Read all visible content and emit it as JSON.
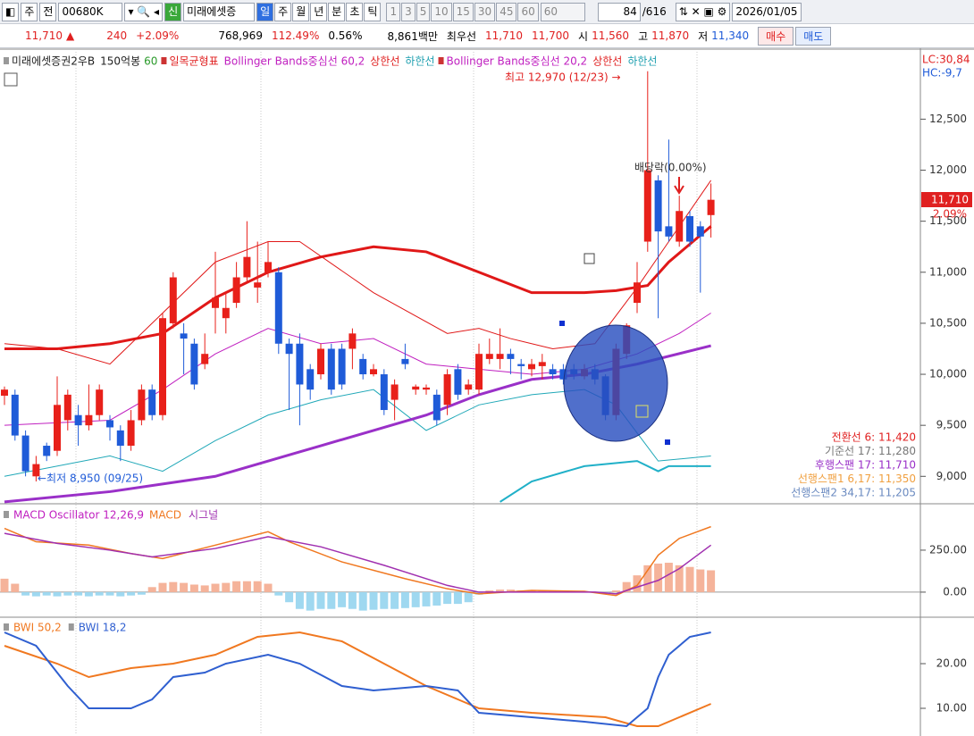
{
  "toolbar": {
    "items": [
      "주",
      "전"
    ],
    "code": "00680K",
    "flag": "신",
    "name": "미래에셋증",
    "periods": [
      "일",
      "주",
      "월",
      "년",
      "분",
      "초",
      "틱"
    ],
    "intervals": [
      "1",
      "3",
      "5",
      "10",
      "15",
      "30",
      "45",
      "60"
    ],
    "interval_value": "60",
    "count": "84",
    "total": "/616",
    "date": "2026/01/05"
  },
  "quote": {
    "price": "11,710",
    "arrow": "▲",
    "change": "240",
    "rate": "+2.09%",
    "volume": "768,969",
    "volume_ratio": "112.49%",
    "turnover": "0.56%",
    "amount": "8,861백만",
    "best_label": "최우선",
    "ask": "11,710",
    "bid": "11,700",
    "open_label": "시",
    "open": "11,560",
    "high_label": "고",
    "high": "11,870",
    "low_label": "저",
    "low": "11,340",
    "buy": "매수",
    "sell": "매도"
  },
  "legend": [
    {
      "text": "미래에셋증권2우B",
      "color": "#222222"
    },
    {
      "text": "150억봉",
      "color": "#222222"
    },
    {
      "text": "60",
      "color": "#2a9a2a"
    },
    {
      "text": "일목균형표",
      "color": "#e02020"
    },
    {
      "text": "Bollinger Bands중심선 60,2",
      "color": "#c020c0"
    },
    {
      "text": "상한선",
      "color": "#e02020"
    },
    {
      "text": "하한선",
      "color": "#20a0b0"
    },
    {
      "text": "Bollinger Bands중심선 20,2",
      "color": "#c020c0"
    },
    {
      "text": "상한선",
      "color": "#e02020"
    },
    {
      "text": "하한선",
      "color": "#20a0b0"
    }
  ],
  "chart_data": [
    {
      "type": "candlestick",
      "up_color": "#e8201a",
      "down_color": "#1f5bd8",
      "open": [
        9790,
        9800,
        9400,
        9000,
        9300,
        9250,
        9550,
        9600,
        9500,
        9600,
        9550,
        9450,
        9300,
        9550,
        9850,
        9600,
        10500,
        10400,
        10300,
        10100,
        10650,
        10550,
        10700,
        10950,
        10850,
        11000,
        11000,
        10300,
        10300,
        10050,
        10000,
        10250,
        10250,
        10250,
        10150,
        10000,
        10000,
        9750,
        10150,
        9850,
        9850,
        9800,
        9700,
        10050,
        9850,
        9850,
        10150,
        10150,
        10200,
        10100,
        10050,
        10080,
        10050,
        10050,
        10050,
        9980,
        10050,
        9980,
        9600,
        10200,
        10700,
        11300,
        11900,
        11450,
        11300,
        11550,
        11450,
        11560
      ],
      "high": [
        9880,
        9850,
        9450,
        9200,
        9330,
        9980,
        9850,
        9700,
        9900,
        9900,
        9600,
        9500,
        9650,
        9900,
        9900,
        10600,
        11000,
        10500,
        10350,
        10400,
        11200,
        10800,
        11100,
        11500,
        11300,
        11300,
        11050,
        10350,
        10400,
        10100,
        10300,
        10300,
        10300,
        10450,
        10200,
        10100,
        10050,
        9950,
        10300,
        9900,
        9900,
        9850,
        10050,
        10100,
        9950,
        10300,
        10350,
        10450,
        10250,
        10150,
        10150,
        10200,
        10100,
        10100,
        10100,
        10100,
        10100,
        10000,
        10300,
        10500,
        11100,
        12970,
        11950,
        12300,
        11750,
        11600,
        11500,
        11870
      ],
      "low": [
        9700,
        9350,
        9000,
        8950,
        9150,
        9200,
        9450,
        9300,
        9450,
        9550,
        9350,
        9150,
        9250,
        9500,
        9550,
        9550,
        10450,
        10000,
        9850,
        10050,
        10400,
        10400,
        10650,
        10900,
        10700,
        10950,
        10200,
        9650,
        9500,
        9750,
        9950,
        9800,
        9850,
        10050,
        9950,
        9980,
        9600,
        9550,
        10050,
        9800,
        9800,
        9500,
        9600,
        9750,
        9800,
        9800,
        10100,
        10050,
        10000,
        9950,
        9980,
        9950,
        9950,
        9900,
        9950,
        9950,
        9900,
        9550,
        9550,
        10150,
        10600,
        11200,
        10550,
        11300,
        11250,
        11250,
        10800,
        11340
      ],
      "close": [
        9850,
        9400,
        9050,
        9120,
        9200,
        9700,
        9800,
        9500,
        9600,
        9850,
        9480,
        9300,
        9550,
        9850,
        9600,
        10550,
        10950,
        10350,
        9900,
        10200,
        10750,
        10650,
        10950,
        11150,
        10900,
        11100,
        10300,
        10200,
        9900,
        9850,
        10250,
        9850,
        9900,
        10400,
        10000,
        10050,
        9650,
        9900,
        10100,
        9880,
        9870,
        9550,
        10000,
        9800,
        9900,
        10200,
        10200,
        10200,
        10150,
        10080,
        10100,
        10120,
        10000,
        9950,
        10000,
        10050,
        9950,
        9600,
        10250,
        10480,
        10900,
        12000,
        11400,
        11350,
        11600,
        11300,
        11350,
        11710
      ],
      "ylim": [
        8740,
        13160
      ],
      "yticks": [
        {
          "value": 9000,
          "label": "9,000"
        },
        {
          "value": 9500,
          "label": "9,500"
        },
        {
          "value": 10000,
          "label": "10,000"
        },
        {
          "value": 10500,
          "label": "10,500"
        },
        {
          "value": 11000,
          "label": "11,000"
        },
        {
          "value": 11500,
          "label": "11,500"
        },
        {
          "value": 12000,
          "label": "12,000"
        },
        {
          "value": 12500,
          "label": "12,500"
        }
      ],
      "lines": [
        {
          "color": "#e01818",
          "width": 3,
          "x": [
            0,
            5,
            10,
            15,
            20,
            25,
            30,
            35,
            40,
            45,
            50,
            55,
            58,
            61,
            63,
            67
          ],
          "values": [
            10250,
            10250,
            10300,
            10400,
            10750,
            11000,
            11150,
            11250,
            11200,
            11000,
            10800,
            10800,
            10820,
            10870,
            11100,
            11450
          ]
        },
        {
          "color": "#e01818",
          "width": 1,
          "x": [
            0,
            5,
            10,
            15,
            20,
            25,
            28,
            35,
            42,
            45,
            48,
            52,
            56,
            60,
            63,
            67
          ],
          "values": [
            10300,
            10250,
            10100,
            10600,
            11100,
            11300,
            11300,
            10800,
            10400,
            10450,
            10350,
            10250,
            10300,
            10850,
            11300,
            11900
          ]
        },
        {
          "color": "#c020c0",
          "width": 1,
          "x": [
            0,
            10,
            15,
            20,
            25,
            30,
            35,
            40,
            45,
            50,
            55,
            60,
            64,
            67
          ],
          "values": [
            9500,
            9550,
            9850,
            10200,
            10450,
            10300,
            10350,
            10100,
            10050,
            10000,
            10050,
            10200,
            10400,
            10600
          ]
        },
        {
          "color": "#20a8b8",
          "width": 1,
          "x": [
            0,
            10,
            15,
            20,
            25,
            30,
            35,
            40,
            45,
            50,
            55,
            58,
            62,
            67
          ],
          "values": [
            9000,
            9200,
            9050,
            9350,
            9600,
            9750,
            9850,
            9450,
            9700,
            9800,
            9850,
            9700,
            9150,
            9200
          ]
        },
        {
          "color": "#9a30c8",
          "width": 3,
          "x": [
            0,
            10,
            20,
            25,
            30,
            35,
            40,
            45,
            50,
            55,
            60,
            67
          ],
          "values": [
            8750,
            8850,
            9000,
            9150,
            9300,
            9450,
            9600,
            9800,
            9950,
            10000,
            10100,
            10280
          ]
        },
        {
          "color": "#20b0c8",
          "width": 2,
          "x": [
            47,
            50,
            55,
            60,
            62,
            63,
            67
          ],
          "values": [
            8750,
            8950,
            9100,
            9150,
            9050,
            9100,
            9100
          ]
        }
      ],
      "high_note": "최고 12,970 (12/23) →",
      "low_note": "←최저 8,950 (09/25)",
      "dividend": "배당락(0.00%)",
      "last_price": "11,710",
      "last_rate": "2.09%",
      "lc": "LC:30,84",
      "hc": "HC:-9,7",
      "ichimoku": [
        {
          "text": "전환선 6: 11,420",
          "color": "#e02020"
        },
        {
          "text": "기준선 17: 11,280",
          "color": "#777777"
        },
        {
          "text": "후행스팬 17: 11,710",
          "color": "#9a30c8"
        },
        {
          "text": "선행스팬1 6,17: 11,350",
          "color": "#f0a040"
        },
        {
          "text": "선행스팬2 34,17: 11,205",
          "color": "#6a8ac0"
        }
      ]
    },
    {
      "type": "macd",
      "histogram": {
        "name": "MACD Oscillator 12,26,9",
        "pos_color": "#f5b39a",
        "neg_color": "#9fd8f0",
        "values": [
          80,
          50,
          -20,
          -25,
          -20,
          -25,
          -20,
          -20,
          -25,
          -20,
          -20,
          -25,
          -20,
          -15,
          30,
          55,
          60,
          55,
          45,
          40,
          50,
          55,
          65,
          65,
          65,
          50,
          -20,
          -60,
          -100,
          -110,
          -100,
          -100,
          -90,
          -100,
          -110,
          -105,
          -100,
          -100,
          -95,
          -90,
          -85,
          -80,
          -70,
          -70,
          -60,
          -15,
          10,
          15,
          15,
          10,
          10,
          10,
          5,
          5,
          0,
          5,
          0,
          -10,
          10,
          60,
          100,
          160,
          170,
          175,
          160,
          150,
          135,
          130
        ]
      },
      "series": [
        {
          "name": "MACD",
          "color": "#f07820",
          "x": [
            0,
            3,
            8,
            12,
            15,
            20,
            25,
            27,
            32,
            38,
            42,
            45,
            50,
            55,
            58,
            60,
            62,
            64,
            67
          ],
          "values": [
            380,
            300,
            280,
            230,
            200,
            280,
            360,
            300,
            180,
            80,
            20,
            -10,
            10,
            5,
            -20,
            40,
            220,
            320,
            390
          ]
        },
        {
          "name": "시그널",
          "color": "#a030b0",
          "x": [
            0,
            5,
            10,
            14,
            20,
            25,
            30,
            36,
            42,
            45,
            50,
            56,
            58,
            62,
            64,
            67
          ],
          "values": [
            350,
            290,
            250,
            210,
            260,
            330,
            270,
            160,
            40,
            0,
            0,
            0,
            -10,
            70,
            140,
            280
          ]
        }
      ],
      "ylim": [
        -144,
        521
      ],
      "yticks": [
        {
          "value": 0,
          "label": "0.00"
        },
        {
          "value": 250,
          "label": "250.00"
        }
      ]
    },
    {
      "type": "line",
      "series": [
        {
          "name": "BWI 50,2",
          "color": "#f07820",
          "x": [
            0,
            5,
            8,
            12,
            16,
            20,
            24,
            28,
            32,
            36,
            40,
            43,
            45,
            50,
            57,
            60,
            62,
            64,
            67
          ],
          "values": [
            24,
            20,
            17,
            19,
            20,
            22,
            26,
            27,
            25,
            20,
            15,
            12,
            10,
            9,
            8,
            6,
            6,
            8,
            11
          ]
        },
        {
          "name": "BWI 18,2",
          "color": "#2f5fd0",
          "x": [
            0,
            3,
            6,
            8,
            12,
            14,
            16,
            19,
            21,
            25,
            28,
            32,
            35,
            40,
            43,
            45,
            50,
            55,
            59,
            61,
            62,
            63,
            65,
            67
          ],
          "values": [
            27,
            24,
            15,
            10,
            10,
            12,
            17,
            18,
            20,
            22,
            20,
            15,
            14,
            15,
            14,
            9,
            8,
            7,
            6,
            10,
            17,
            22,
            26,
            27
          ]
        }
      ],
      "ylim": [
        4.2,
        30.2
      ],
      "yticks": [
        {
          "value": 10,
          "label": "10.00"
        },
        {
          "value": 20,
          "label": "20.00"
        }
      ]
    }
  ]
}
